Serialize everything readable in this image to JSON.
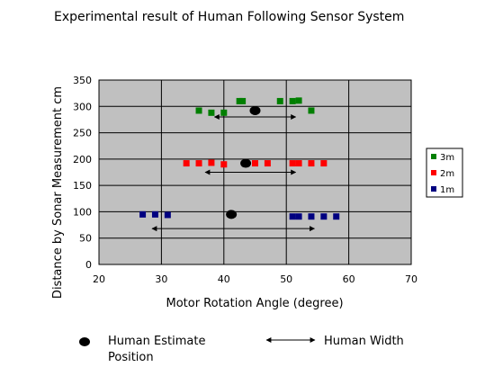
{
  "chart_data": {
    "type": "scatter",
    "title": "Experimental result of Human Following Sensor System",
    "xlabel": "Motor Rotation Angle (degree)",
    "ylabel": "Distance by Sonar Measurement cm",
    "xlim": [
      20,
      70
    ],
    "ylim": [
      0,
      350
    ],
    "xticks": [
      "20",
      "30",
      "40",
      "50",
      "60",
      "70"
    ],
    "yticks": [
      "0",
      "50",
      "100",
      "150",
      "200",
      "250",
      "300",
      "350"
    ],
    "grid": true,
    "plot_background": "#c0c0c0",
    "legend": {
      "placement": "right"
    },
    "series": [
      {
        "name": "3m",
        "color": "#007f00",
        "points": [
          [
            36,
            292
          ],
          [
            38,
            288
          ],
          [
            40,
            288
          ],
          [
            42.5,
            310
          ],
          [
            43,
            310
          ],
          [
            49,
            310
          ],
          [
            51,
            310
          ],
          [
            52,
            311
          ],
          [
            54,
            292
          ]
        ]
      },
      {
        "name": "2m",
        "color": "#ff0000",
        "points": [
          [
            34,
            192
          ],
          [
            36,
            192
          ],
          [
            38,
            193
          ],
          [
            40,
            190
          ],
          [
            45,
            192
          ],
          [
            47,
            192
          ],
          [
            51,
            192
          ],
          [
            52,
            192
          ],
          [
            54,
            192
          ],
          [
            56,
            192
          ]
        ]
      },
      {
        "name": "1m",
        "color": "#000080",
        "points": [
          [
            27,
            95
          ],
          [
            29,
            95
          ],
          [
            31,
            94
          ],
          [
            51,
            91
          ],
          [
            52,
            91
          ],
          [
            54,
            91
          ],
          [
            56,
            91
          ],
          [
            58,
            91
          ]
        ]
      }
    ],
    "human_estimates": [
      {
        "x": 45,
        "y": 292
      },
      {
        "x": 43.5,
        "y": 192
      },
      {
        "x": 41.2,
        "y": 95
      }
    ],
    "human_widths": [
      {
        "x1": 38.5,
        "x2": 51.5,
        "y": 280
      },
      {
        "x1": 37.0,
        "x2": 51.5,
        "y": 175
      },
      {
        "x1": 28.5,
        "x2": 54.5,
        "y": 68
      }
    ],
    "annotations": {
      "estimate_label_line1": "Human Estimate",
      "estimate_label_line2": "Position",
      "width_label": "Human Width"
    }
  }
}
